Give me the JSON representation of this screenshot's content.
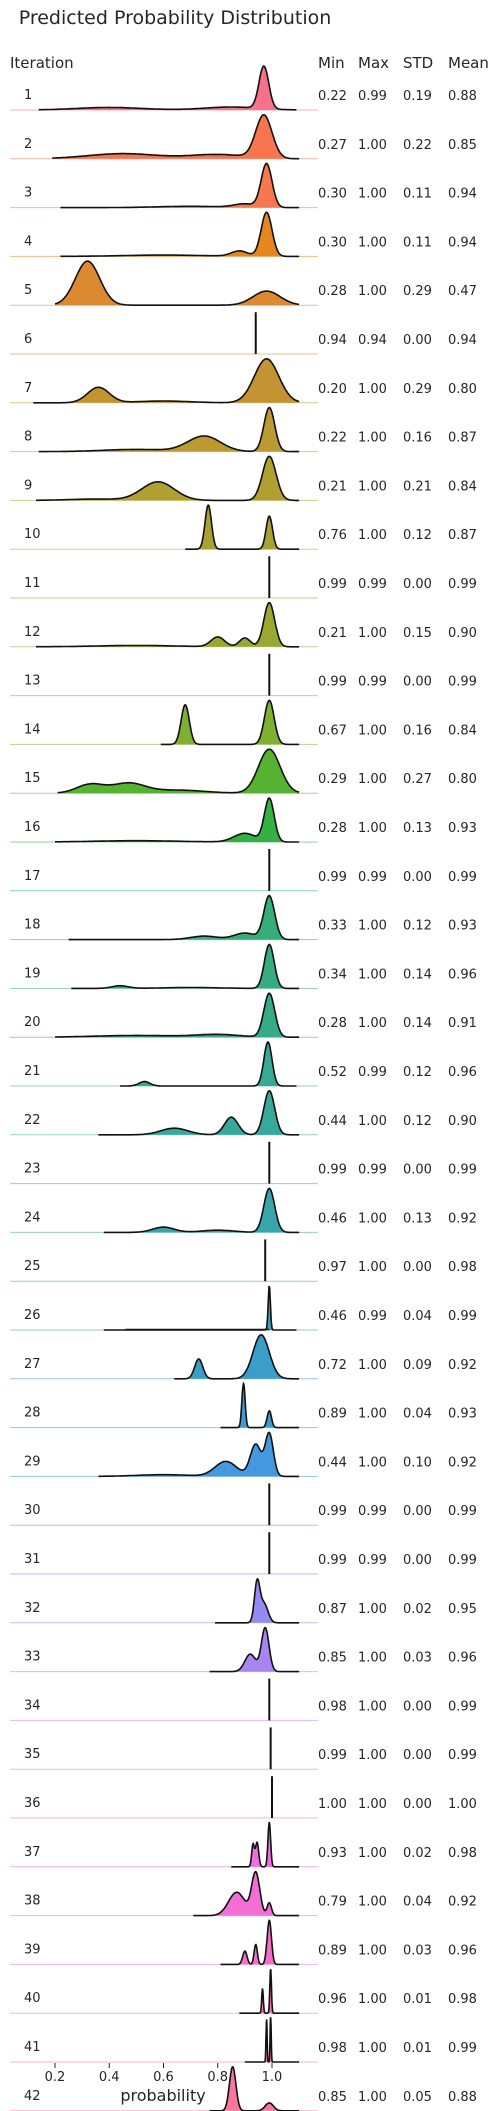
{
  "chart_data": {
    "type": "ridgeline",
    "title": "Predicted Probability Distribution",
    "xlabel": "probability",
    "xlim": [
      0.1,
      1.15
    ],
    "xticks": [
      "0.2",
      "0.4",
      "0.6",
      "0.8",
      "1.0"
    ],
    "xtick_values": [
      0.2,
      0.4,
      0.6,
      0.8,
      1.0
    ],
    "row_header": "Iteration",
    "stat_headers": [
      "Min",
      "Max",
      "STD",
      "Mean"
    ],
    "rows": [
      {
        "label": "1",
        "color": "#f77189",
        "stats": [
          "0.22",
          "0.99",
          "0.19",
          "0.88"
        ],
        "peaks": [
          [
            0.97,
            0.018,
            1.0
          ],
          [
            0.4,
            0.12,
            0.06
          ],
          [
            0.85,
            0.1,
            0.07
          ]
        ]
      },
      {
        "label": "2",
        "color": "#f7754f",
        "stats": [
          "0.27",
          "1.00",
          "0.22",
          "0.85"
        ],
        "peaks": [
          [
            0.97,
            0.03,
            1.0
          ],
          [
            0.45,
            0.13,
            0.12
          ],
          [
            0.8,
            0.1,
            0.1
          ]
        ]
      },
      {
        "label": "3",
        "color": "#f77850",
        "stats": [
          "0.30",
          "1.00",
          "0.11",
          "0.94"
        ],
        "peaks": [
          [
            0.98,
            0.02,
            1.0
          ],
          [
            0.7,
            0.12,
            0.03
          ],
          [
            0.9,
            0.04,
            0.08
          ]
        ]
      },
      {
        "label": "4",
        "color": "#e5861f",
        "stats": [
          "0.30",
          "1.00",
          "0.11",
          "0.94"
        ],
        "peaks": [
          [
            0.98,
            0.02,
            1.0
          ],
          [
            0.88,
            0.03,
            0.12
          ],
          [
            0.6,
            0.15,
            0.03
          ]
        ]
      },
      {
        "label": "5",
        "color": "#dc8932",
        "stats": [
          "0.28",
          "1.00",
          "0.29",
          "0.47"
        ],
        "peaks": [
          [
            0.32,
            0.045,
            1.0
          ],
          [
            0.98,
            0.05,
            0.32
          ]
        ]
      },
      {
        "label": "6",
        "color": "#d08c32",
        "stats": [
          "0.94",
          "0.94",
          "0.00",
          "0.94"
        ],
        "spike": 0.94
      },
      {
        "label": "7",
        "color": "#c49433",
        "stats": [
          "0.20",
          "1.00",
          "0.29",
          "0.80"
        ],
        "peaks": [
          [
            0.98,
            0.045,
            1.0
          ],
          [
            0.36,
            0.04,
            0.35
          ],
          [
            0.6,
            0.1,
            0.04
          ]
        ]
      },
      {
        "label": "8",
        "color": "#bb9a32",
        "stats": [
          "0.22",
          "1.00",
          "0.16",
          "0.87"
        ],
        "peaks": [
          [
            0.99,
            0.02,
            1.0
          ],
          [
            0.75,
            0.06,
            0.35
          ],
          [
            0.5,
            0.12,
            0.05
          ]
        ]
      },
      {
        "label": "9",
        "color": "#b29f32",
        "stats": [
          "0.21",
          "1.00",
          "0.21",
          "0.84"
        ],
        "peaks": [
          [
            0.99,
            0.025,
            1.0
          ],
          [
            0.58,
            0.06,
            0.42
          ],
          [
            0.35,
            0.1,
            0.03
          ]
        ]
      },
      {
        "label": "10",
        "color": "#a9a232",
        "stats": [
          "0.76",
          "1.00",
          "0.12",
          "0.87"
        ],
        "peaks": [
          [
            0.765,
            0.012,
            1.0
          ],
          [
            0.99,
            0.012,
            0.75
          ]
        ]
      },
      {
        "label": "11",
        "color": "#a3a532",
        "stats": [
          "0.99",
          "0.99",
          "0.00",
          "0.99"
        ],
        "spike": 0.99
      },
      {
        "label": "12",
        "color": "#9aa832",
        "stats": [
          "0.21",
          "1.00",
          "0.15",
          "0.90"
        ],
        "peaks": [
          [
            0.99,
            0.02,
            1.0
          ],
          [
            0.8,
            0.025,
            0.22
          ],
          [
            0.9,
            0.02,
            0.2
          ],
          [
            0.5,
            0.15,
            0.03
          ]
        ]
      },
      {
        "label": "13",
        "color": "#91ab32",
        "stats": [
          "0.99",
          "0.99",
          "0.00",
          "0.99"
        ],
        "spike": 0.99
      },
      {
        "label": "14",
        "color": "#7eb031",
        "stats": [
          "0.67",
          "1.00",
          "0.16",
          "0.84"
        ],
        "peaks": [
          [
            0.68,
            0.015,
            0.9
          ],
          [
            0.99,
            0.018,
            1.0
          ]
        ]
      },
      {
        "label": "15",
        "color": "#55b331",
        "stats": [
          "0.29",
          "1.00",
          "0.27",
          "0.80"
        ],
        "peaks": [
          [
            0.99,
            0.04,
            1.0
          ],
          [
            0.33,
            0.05,
            0.2
          ],
          [
            0.47,
            0.06,
            0.22
          ],
          [
            0.65,
            0.1,
            0.07
          ]
        ]
      },
      {
        "label": "16",
        "color": "#33b143",
        "stats": [
          "0.28",
          "1.00",
          "0.13",
          "0.93"
        ],
        "peaks": [
          [
            0.99,
            0.018,
            1.0
          ],
          [
            0.9,
            0.04,
            0.2
          ],
          [
            0.5,
            0.15,
            0.03
          ]
        ]
      },
      {
        "label": "17",
        "color": "#34b062",
        "stats": [
          "0.99",
          "0.99",
          "0.00",
          "0.99"
        ],
        "spike": 0.99
      },
      {
        "label": "18",
        "color": "#35ae78",
        "stats": [
          "0.33",
          "1.00",
          "0.12",
          "0.93"
        ],
        "peaks": [
          [
            0.99,
            0.02,
            1.0
          ],
          [
            0.75,
            0.05,
            0.08
          ],
          [
            0.9,
            0.04,
            0.15
          ]
        ]
      },
      {
        "label": "19",
        "color": "#35ad7f",
        "stats": [
          "0.34",
          "1.00",
          "0.14",
          "0.96"
        ],
        "peaks": [
          [
            0.99,
            0.018,
            1.0
          ],
          [
            0.44,
            0.03,
            0.06
          ],
          [
            0.7,
            0.1,
            0.02
          ]
        ]
      },
      {
        "label": "20",
        "color": "#36ab88",
        "stats": [
          "0.28",
          "1.00",
          "0.14",
          "0.91"
        ],
        "peaks": [
          [
            0.99,
            0.02,
            1.0
          ],
          [
            0.8,
            0.08,
            0.06
          ],
          [
            0.5,
            0.15,
            0.04
          ]
        ]
      },
      {
        "label": "21",
        "color": "#36aa93",
        "stats": [
          "0.52",
          "0.99",
          "0.12",
          "0.96"
        ],
        "peaks": [
          [
            0.985,
            0.015,
            1.0
          ],
          [
            0.53,
            0.02,
            0.1
          ]
        ]
      },
      {
        "label": "22",
        "color": "#36a99b",
        "stats": [
          "0.44",
          "1.00",
          "0.12",
          "0.90"
        ],
        "peaks": [
          [
            0.99,
            0.02,
            1.0
          ],
          [
            0.85,
            0.025,
            0.4
          ],
          [
            0.64,
            0.05,
            0.15
          ]
        ]
      },
      {
        "label": "23",
        "color": "#37a7a4",
        "stats": [
          "0.99",
          "0.99",
          "0.00",
          "0.99"
        ],
        "spike": 0.99
      },
      {
        "label": "24",
        "color": "#38a5ad",
        "stats": [
          "0.46",
          "1.00",
          "0.13",
          "0.92"
        ],
        "peaks": [
          [
            0.99,
            0.02,
            1.0
          ],
          [
            0.6,
            0.04,
            0.12
          ],
          [
            0.8,
            0.06,
            0.05
          ]
        ]
      },
      {
        "label": "25",
        "color": "#38a3b5",
        "stats": [
          "0.97",
          "1.00",
          "0.00",
          "0.98"
        ],
        "spike": 0.975
      },
      {
        "label": "26",
        "color": "#39a1bd",
        "stats": [
          "0.46",
          "0.99",
          "0.04",
          "0.99"
        ],
        "peaks": [
          [
            0.99,
            0.004,
            1.0
          ]
        ],
        "base_from": 0.46
      },
      {
        "label": "27",
        "color": "#3b9ec8",
        "stats": [
          "0.72",
          "1.00",
          "0.09",
          "0.92"
        ],
        "peaks": [
          [
            0.96,
            0.03,
            1.0
          ],
          [
            0.73,
            0.015,
            0.45
          ]
        ]
      },
      {
        "label": "28",
        "color": "#3d9bd2",
        "stats": [
          "0.89",
          "1.00",
          "0.04",
          "0.93"
        ],
        "peaks": [
          [
            0.895,
            0.006,
            1.0
          ],
          [
            0.99,
            0.008,
            0.38
          ]
        ]
      },
      {
        "label": "29",
        "color": "#4498e0",
        "stats": [
          "0.44",
          "1.00",
          "0.10",
          "0.92"
        ],
        "peaks": [
          [
            0.99,
            0.015,
            1.0
          ],
          [
            0.94,
            0.02,
            0.75
          ],
          [
            0.83,
            0.04,
            0.35
          ],
          [
            0.6,
            0.1,
            0.04
          ]
        ]
      },
      {
        "label": "30",
        "color": "#5e94e7",
        "stats": [
          "0.99",
          "0.99",
          "0.00",
          "0.99"
        ],
        "spike": 0.99
      },
      {
        "label": "31",
        "color": "#7e8eee",
        "stats": [
          "0.99",
          "0.99",
          "0.00",
          "0.99"
        ],
        "spike": 0.99
      },
      {
        "label": "32",
        "color": "#948af1",
        "stats": [
          "0.87",
          "1.00",
          "0.02",
          "0.95"
        ],
        "peaks": [
          [
            0.945,
            0.01,
            1.0
          ],
          [
            0.97,
            0.015,
            0.5
          ]
        ]
      },
      {
        "label": "33",
        "color": "#a884f3",
        "stats": [
          "0.85",
          "1.00",
          "0.03",
          "0.96"
        ],
        "peaks": [
          [
            0.975,
            0.014,
            1.0
          ],
          [
            0.92,
            0.02,
            0.4
          ]
        ]
      },
      {
        "label": "34",
        "color": "#bf80f4",
        "stats": [
          "0.98",
          "1.00",
          "0.00",
          "0.99"
        ],
        "spike": 0.99
      },
      {
        "label": "35",
        "color": "#d57bf3",
        "stats": [
          "0.99",
          "1.00",
          "0.00",
          "0.99"
        ],
        "spike": 0.995
      },
      {
        "label": "36",
        "color": "#e075f1",
        "stats": [
          "1.00",
          "1.00",
          "0.00",
          "1.00"
        ],
        "spike": 1.0
      },
      {
        "label": "37",
        "color": "#f06fe2",
        "stats": [
          "0.93",
          "1.00",
          "0.02",
          "0.98"
        ],
        "peaks": [
          [
            0.99,
            0.005,
            1.0
          ],
          [
            0.945,
            0.006,
            0.55
          ],
          [
            0.93,
            0.005,
            0.5
          ]
        ]
      },
      {
        "label": "38",
        "color": "#f46ed6",
        "stats": [
          "0.79",
          "1.00",
          "0.04",
          "0.92"
        ],
        "peaks": [
          [
            0.94,
            0.015,
            1.0
          ],
          [
            0.87,
            0.03,
            0.55
          ],
          [
            0.99,
            0.008,
            0.3
          ]
        ]
      },
      {
        "label": "39",
        "color": "#f56fc9",
        "stats": [
          "0.89",
          "1.00",
          "0.03",
          "0.96"
        ],
        "peaks": [
          [
            0.99,
            0.008,
            1.0
          ],
          [
            0.9,
            0.008,
            0.3
          ],
          [
            0.94,
            0.006,
            0.45
          ]
        ]
      },
      {
        "label": "40",
        "color": "#f672bb",
        "stats": [
          "0.96",
          "1.00",
          "0.01",
          "0.98"
        ],
        "peaks": [
          [
            0.995,
            0.003,
            1.0
          ],
          [
            0.965,
            0.003,
            0.55
          ]
        ]
      },
      {
        "label": "41",
        "color": "#f674ae",
        "stats": [
          "0.98",
          "1.00",
          "0.01",
          "0.99"
        ],
        "peaks": [
          [
            0.995,
            0.002,
            1.0
          ],
          [
            0.98,
            0.002,
            0.95
          ]
        ]
      },
      {
        "label": "42",
        "color": "#f7779e",
        "stats": [
          "0.85",
          "1.00",
          "0.05",
          "0.88"
        ],
        "peaks": [
          [
            0.855,
            0.012,
            1.0
          ],
          [
            0.99,
            0.015,
            0.18
          ]
        ]
      }
    ]
  }
}
